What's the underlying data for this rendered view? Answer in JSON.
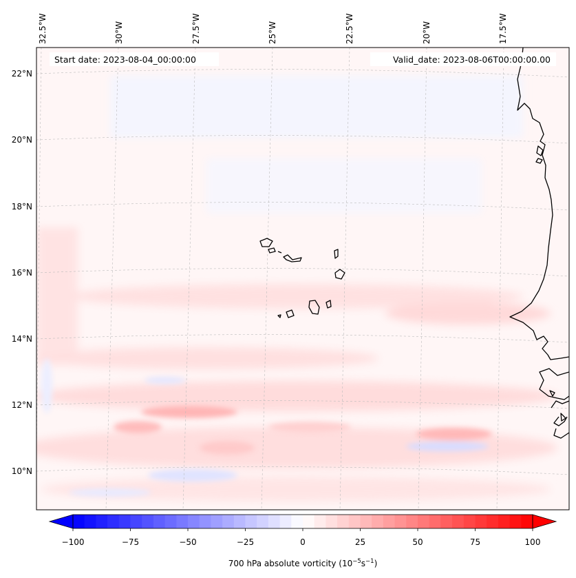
{
  "map": {
    "start_date_label": "Start date: 2023-08-04_00:00:00",
    "valid_date_label": "Valid_date: 2023-08-06T00:00:00.00",
    "lon_ticks": [
      "32.5°W",
      "30°W",
      "27.5°W",
      "25°W",
      "22.5°W",
      "20°W",
      "17.5°W"
    ],
    "lat_ticks": [
      "22°N",
      "20°N",
      "18°N",
      "16°N",
      "14°N",
      "12°N",
      "10°N"
    ],
    "coastline_color": "#000000",
    "gridline_color": "#bbbbbb"
  },
  "colorbar": {
    "label_prefix": "700 hPa absolute vorticity (10",
    "label_exp1": "−5",
    "label_mid": "s",
    "label_exp2": "−1",
    "label_suffix": ")",
    "ticks": [
      "−100",
      "−75",
      "−50",
      "−25",
      "0",
      "25",
      "50",
      "75",
      "100"
    ],
    "vmin": -100,
    "vmax": 100,
    "colormap": "bwr",
    "extend": "both",
    "min_color": "#0000ff",
    "mid_color": "#ffffff",
    "max_color": "#ff0000"
  }
}
